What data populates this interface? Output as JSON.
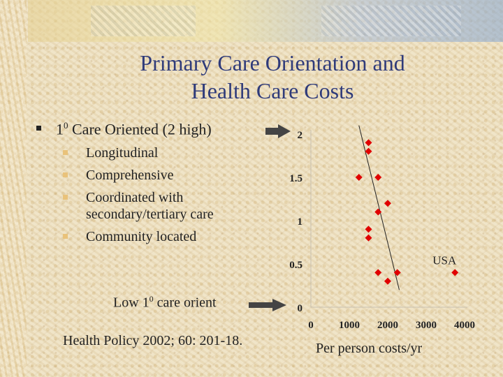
{
  "slide": {
    "title_line1": "Primary Care Orientation and",
    "title_line2": "Health Care Costs",
    "main_bullet_pre": "1",
    "main_bullet_sup": "0",
    "main_bullet_post": " Care Oriented (2 high)",
    "sub_bullets": [
      "Longitudinal",
      "Comprehensive",
      "Coordinated with secondary/tertiary care",
      "Community located"
    ],
    "low_label_pre": "Low 1",
    "low_label_sup": "0",
    "low_label_post": " care orient",
    "source": "Health Policy 2002; 60: 201-18.",
    "xlabel": "Per person costs/yr"
  },
  "colors": {
    "title": "#2f3b7a",
    "marker": "#e00000",
    "arrow": "#444444",
    "sub_bullet": "#e9c27a"
  },
  "chart_data": {
    "type": "scatter",
    "x_ticks": [
      "0",
      "1000",
      "2000",
      "3000",
      "4000"
    ],
    "y_ticks": [
      "2",
      "1.5",
      "1",
      "0.5",
      "0"
    ],
    "xlim": [
      0,
      4000
    ],
    "ylim": [
      0,
      2
    ],
    "points": [
      {
        "x": 1500,
        "y": 1.9
      },
      {
        "x": 1500,
        "y": 1.8
      },
      {
        "x": 1250,
        "y": 1.5
      },
      {
        "x": 1750,
        "y": 1.5
      },
      {
        "x": 2000,
        "y": 1.2
      },
      {
        "x": 1750,
        "y": 1.1
      },
      {
        "x": 1500,
        "y": 0.9
      },
      {
        "x": 1500,
        "y": 0.8
      },
      {
        "x": 1750,
        "y": 0.4
      },
      {
        "x": 2250,
        "y": 0.4
      },
      {
        "x": 2000,
        "y": 0.3
      },
      {
        "x": 3750,
        "y": 0.4
      }
    ],
    "trendline": [
      {
        "x": 1250,
        "y": 2.1
      },
      {
        "x": 2300,
        "y": 0.2
      }
    ],
    "annotations": [
      {
        "text": "USA",
        "x": 3750,
        "y": 0.4
      }
    ]
  }
}
